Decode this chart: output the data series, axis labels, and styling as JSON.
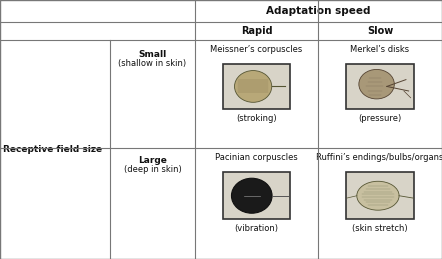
{
  "title": "Adaptation speed",
  "col_headers": [
    "Rapid",
    "Slow"
  ],
  "row_header": "Receptive field size",
  "row_subheaders_line1": [
    "Small",
    "Large"
  ],
  "row_subheaders_line2": [
    "(shallow in skin)",
    "(deep in skin)"
  ],
  "cell_names": [
    [
      "Meissner’s corpuscles",
      "Merkel’s disks"
    ],
    [
      "Pacinian corpuscles",
      "Ruffini’s endings/bulbs/organs"
    ]
  ],
  "cell_subtitles": [
    [
      "(stroking)",
      "(pressure)"
    ],
    [
      "(vibration)",
      "(skin stretch)"
    ]
  ],
  "bg_color": "#ffffff",
  "grid_color": "#777777",
  "text_color": "#111111",
  "img_border_color": "#333333",
  "img_bg_meissner": "#c8c4b0",
  "img_bg_merkel": "#c0bdb8",
  "img_bg_pacinian": "#e8e4d8",
  "img_bg_ruffini": "#c8c8b8"
}
